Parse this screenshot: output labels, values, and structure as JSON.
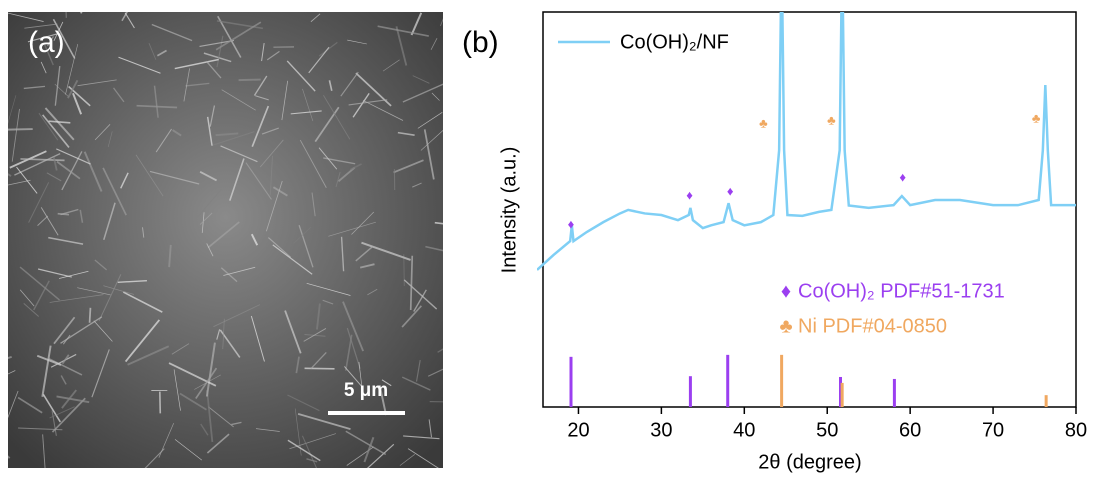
{
  "panel_a": {
    "label": "(a)",
    "scale_bar": "5 μm"
  },
  "chart_data": {
    "type": "line",
    "panel_label": "(b)",
    "xlabel": "2θ (degree)",
    "ylabel": "Intensity (a.u.)",
    "xlim": [
      15,
      80
    ],
    "ylim": [
      0,
      100
    ],
    "xticks": [
      20,
      30,
      40,
      50,
      60,
      70,
      80
    ],
    "legend": "upper left",
    "series": [
      {
        "name": "Co(OH)₂/NF",
        "color": "#7fcff5",
        "x": [
          15,
          17,
          19,
          19.2,
          19.4,
          21,
          23,
          25,
          26,
          28,
          30,
          32,
          33.3,
          33.5,
          33.8,
          35,
          36,
          37.5,
          38.1,
          38.6,
          40,
          42,
          43.5,
          44.2,
          44.5,
          44.8,
          45.2,
          47,
          49,
          50.5,
          51.5,
          51.8,
          52.1,
          52.6,
          55,
          58,
          59,
          60,
          63,
          66,
          70,
          73,
          75.5,
          76,
          76.3,
          76.6,
          77,
          80
        ],
        "values": [
          34.7,
          38.5,
          42,
          46,
          42,
          44.3,
          46.8,
          49,
          49.9,
          49,
          48.6,
          47.3,
          48.6,
          50.4,
          47.3,
          45.3,
          46,
          46.8,
          51.6,
          47.3,
          46,
          46.8,
          48.6,
          65,
          115.7,
          65,
          48.6,
          48.4,
          49.4,
          49.9,
          65,
          115.7,
          65,
          51,
          50.4,
          51.1,
          53.4,
          51.1,
          52.4,
          52.4,
          51.1,
          51.1,
          52.4,
          65,
          81.5,
          65,
          51.1,
          51.1
        ]
      }
    ],
    "references": [
      {
        "name": "Co(OH)₂ PDF#51-1731",
        "symbol": "♦",
        "color": "#9b3ff0",
        "marker_x": [
          19.1,
          33.4,
          38.3,
          59.1
        ],
        "marker_values": [
          46.1,
          53.4,
          54.4,
          58
        ],
        "stick_x": [
          19.1,
          33.5,
          38.0,
          51.6,
          58.1
        ],
        "stick_values": [
          12.7,
          7.8,
          13.2,
          7.6,
          7.1
        ]
      },
      {
        "name": "Ni PDF#04-0850",
        "symbol": "♣",
        "color": "#f0a860",
        "marker_x": [
          42.3,
          50.5,
          75.2
        ],
        "marker_values": [
          71.6,
          72.4,
          72.9
        ],
        "stick_x": [
          44.5,
          51.8,
          76.4
        ],
        "stick_values": [
          13.2,
          6.1,
          3
        ]
      }
    ]
  }
}
